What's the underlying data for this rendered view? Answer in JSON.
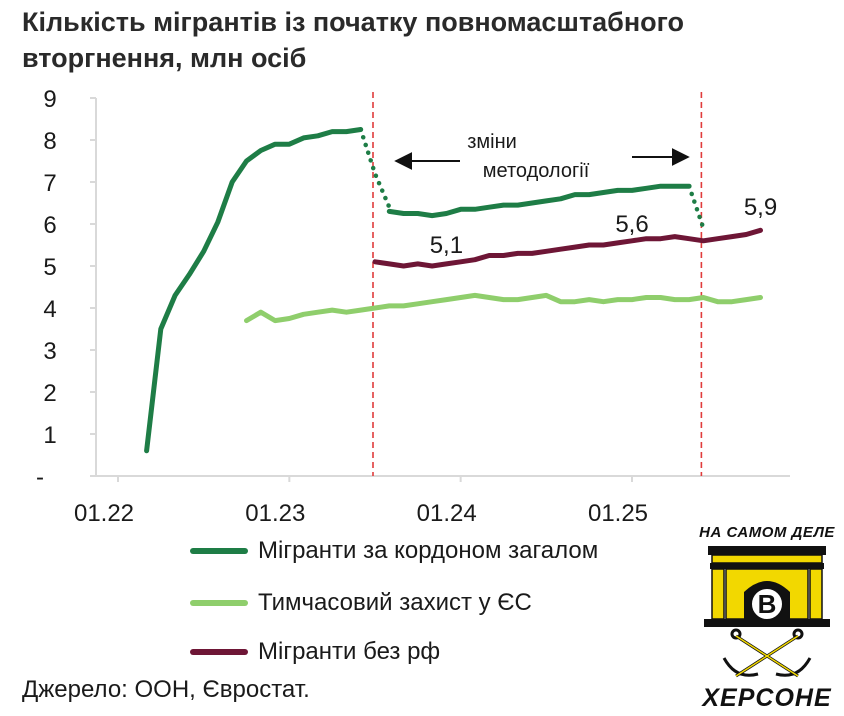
{
  "title": "Кількість мігрантів із початку повномасштабного вторгнення, млн осіб",
  "source": "Джерело: ООН, Євростат.",
  "logo": {
    "top_text": "НА САМОМ ДЕЛЕ",
    "letter": "В",
    "bottom_text": "ХЕРСОНЕ"
  },
  "colors": {
    "series_total": "#1e7d46",
    "series_temp": "#8fce6c",
    "series_no_ru": "#6e1636",
    "divider": "#e03c3c",
    "axis": "#d9d9d9",
    "logo_yellow": "#f2d800"
  },
  "chart_data": {
    "type": "line",
    "title": "Кількість мігрантів із початку повномасштабного вторгнення, млн осіб",
    "xlabel": "",
    "ylabel": "",
    "xlim": [
      "2022-01",
      "2025-10"
    ],
    "ylim": [
      0,
      9
    ],
    "x_ticks": [
      {
        "x": "2022-01",
        "label": "01.22"
      },
      {
        "x": "2023-01",
        "label": "01.23"
      },
      {
        "x": "2024-01",
        "label": "01.24"
      },
      {
        "x": "2025-01",
        "label": "01.25"
      }
    ],
    "y_ticks": [
      {
        "y": 0,
        "label": "-"
      },
      {
        "y": 1,
        "label": "1"
      },
      {
        "y": 2,
        "label": "2"
      },
      {
        "y": 3,
        "label": "3"
      },
      {
        "y": 4,
        "label": "4"
      },
      {
        "y": 5,
        "label": "5"
      },
      {
        "y": 6,
        "label": "6"
      },
      {
        "y": 7,
        "label": "7"
      },
      {
        "y": 8,
        "label": "8"
      },
      {
        "y": 9,
        "label": "9"
      }
    ],
    "grid": false,
    "legend_position": "bottom",
    "series": [
      {
        "name": "Мігранти за кордоном загалом",
        "color": "#1e7d46",
        "segments": [
          {
            "style": "solid",
            "points": [
              [
                "2022-03",
                0.6
              ],
              [
                "2022-04",
                3.5
              ],
              [
                "2022-05",
                4.3
              ],
              [
                "2022-06",
                4.8
              ],
              [
                "2022-07",
                5.35
              ],
              [
                "2022-08",
                6.05
              ],
              [
                "2022-09",
                7.0
              ],
              [
                "2022-10",
                7.5
              ],
              [
                "2022-11",
                7.75
              ],
              [
                "2022-12",
                7.9
              ],
              [
                "2023-01",
                7.9
              ],
              [
                "2023-02",
                8.05
              ],
              [
                "2023-03",
                8.1
              ],
              [
                "2023-04",
                8.2
              ],
              [
                "2023-05",
                8.2
              ],
              [
                "2023-06",
                8.25
              ]
            ]
          },
          {
            "style": "dotted",
            "points": [
              [
                "2023-06",
                8.25
              ],
              [
                "2023-07",
                7.2
              ],
              [
                "2023-08",
                6.4
              ]
            ]
          },
          {
            "style": "solid",
            "points": [
              [
                "2023-08",
                6.3
              ],
              [
                "2023-09",
                6.25
              ],
              [
                "2023-10",
                6.25
              ],
              [
                "2023-11",
                6.2
              ],
              [
                "2023-12",
                6.25
              ],
              [
                "2024-01",
                6.35
              ],
              [
                "2024-02",
                6.35
              ],
              [
                "2024-03",
                6.4
              ],
              [
                "2024-04",
                6.45
              ],
              [
                "2024-05",
                6.45
              ],
              [
                "2024-06",
                6.5
              ],
              [
                "2024-07",
                6.55
              ],
              [
                "2024-08",
                6.6
              ],
              [
                "2024-09",
                6.7
              ],
              [
                "2024-10",
                6.7
              ],
              [
                "2024-11",
                6.75
              ],
              [
                "2024-12",
                6.8
              ],
              [
                "2025-01",
                6.8
              ],
              [
                "2025-02",
                6.85
              ],
              [
                "2025-03",
                6.9
              ],
              [
                "2025-04",
                6.9
              ],
              [
                "2025-05",
                6.9
              ]
            ]
          },
          {
            "style": "dotted",
            "points": [
              [
                "2025-05",
                6.9
              ],
              [
                "2025-06",
                5.9
              ]
            ]
          }
        ]
      },
      {
        "name": "Тимчасовий захист у ЄС",
        "color": "#8fce6c",
        "segments": [
          {
            "style": "solid",
            "points": [
              [
                "2022-10",
                3.7
              ],
              [
                "2022-11",
                3.9
              ],
              [
                "2022-12",
                3.7
              ],
              [
                "2023-01",
                3.75
              ],
              [
                "2023-02",
                3.85
              ],
              [
                "2023-03",
                3.9
              ],
              [
                "2023-04",
                3.95
              ],
              [
                "2023-05",
                3.9
              ],
              [
                "2023-06",
                3.95
              ],
              [
                "2023-07",
                4.0
              ],
              [
                "2023-08",
                4.05
              ],
              [
                "2023-09",
                4.05
              ],
              [
                "2023-10",
                4.1
              ],
              [
                "2023-11",
                4.15
              ],
              [
                "2023-12",
                4.2
              ],
              [
                "2024-01",
                4.25
              ],
              [
                "2024-02",
                4.3
              ],
              [
                "2024-03",
                4.25
              ],
              [
                "2024-04",
                4.2
              ],
              [
                "2024-05",
                4.2
              ],
              [
                "2024-06",
                4.25
              ],
              [
                "2024-07",
                4.3
              ],
              [
                "2024-08",
                4.15
              ],
              [
                "2024-09",
                4.15
              ],
              [
                "2024-10",
                4.2
              ],
              [
                "2024-11",
                4.15
              ],
              [
                "2024-12",
                4.2
              ],
              [
                "2025-01",
                4.2
              ],
              [
                "2025-02",
                4.25
              ],
              [
                "2025-03",
                4.25
              ],
              [
                "2025-04",
                4.2
              ],
              [
                "2025-05",
                4.2
              ],
              [
                "2025-06",
                4.25
              ],
              [
                "2025-07",
                4.15
              ],
              [
                "2025-08",
                4.15
              ],
              [
                "2025-09",
                4.2
              ],
              [
                "2025-10",
                4.25
              ]
            ]
          }
        ]
      },
      {
        "name": "Мігранти без рф",
        "color": "#6e1636",
        "segments": [
          {
            "style": "solid",
            "points": [
              [
                "2023-07",
                5.1
              ],
              [
                "2023-08",
                5.05
              ],
              [
                "2023-09",
                5.0
              ],
              [
                "2023-10",
                5.05
              ],
              [
                "2023-11",
                5.0
              ],
              [
                "2023-12",
                5.05
              ],
              [
                "2024-01",
                5.1
              ],
              [
                "2024-02",
                5.15
              ],
              [
                "2024-03",
                5.25
              ],
              [
                "2024-04",
                5.25
              ],
              [
                "2024-05",
                5.3
              ],
              [
                "2024-06",
                5.3
              ],
              [
                "2024-07",
                5.35
              ],
              [
                "2024-08",
                5.4
              ],
              [
                "2024-09",
                5.45
              ],
              [
                "2024-10",
                5.5
              ],
              [
                "2024-11",
                5.5
              ],
              [
                "2024-12",
                5.55
              ],
              [
                "2025-01",
                5.6
              ],
              [
                "2025-02",
                5.65
              ],
              [
                "2025-03",
                5.65
              ],
              [
                "2025-04",
                5.7
              ],
              [
                "2025-05",
                5.65
              ],
              [
                "2025-06",
                5.6
              ],
              [
                "2025-07",
                5.65
              ],
              [
                "2025-08",
                5.7
              ],
              [
                "2025-09",
                5.75
              ],
              [
                "2025-10",
                5.85
              ]
            ]
          }
        ]
      }
    ],
    "dividers": [
      {
        "x": "2023-07",
        "style": "dashed"
      },
      {
        "x": "2025-06",
        "style": "dashed"
      }
    ],
    "annotations": [
      {
        "text": "5,1",
        "x": "2023-12",
        "y": 5.5
      },
      {
        "text": "5,6",
        "x": "2025-01",
        "y": 6.0
      },
      {
        "text": "5,9",
        "x": "2025-10",
        "y": 6.4
      }
    ],
    "methodology_note": {
      "line1": "зміни",
      "line2": "методології"
    }
  }
}
